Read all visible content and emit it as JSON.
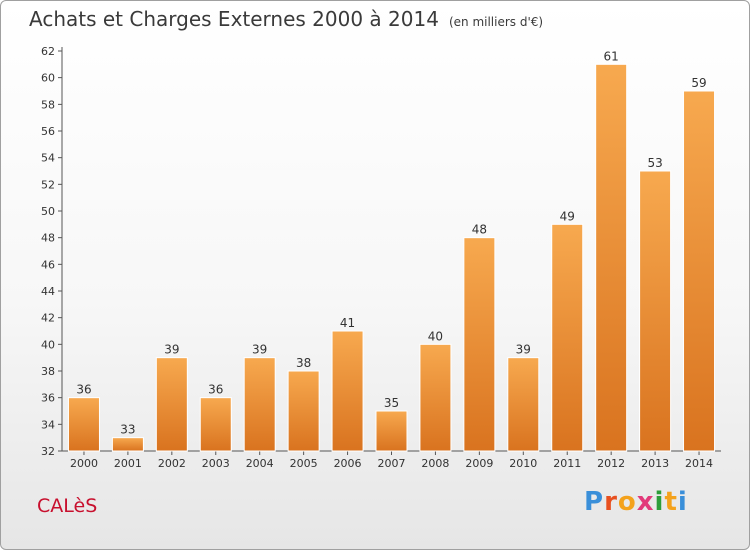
{
  "header": {
    "title": "Achats et Charges Externes 2000 à 2014",
    "unit": "(en milliers d'€)"
  },
  "footer": {
    "commune": "CALèS",
    "logo_text": "Proxiti"
  },
  "colors": {
    "bar_light": "#f7a94f",
    "bar_dark": "#d9731f",
    "axis": "#555555",
    "commune": "#c8102e"
  },
  "chart_data": {
    "type": "bar",
    "title": "Achats et Charges Externes 2000 à 2014",
    "subtitle": "(en milliers d'€)",
    "categories": [
      "2000",
      "2001",
      "2002",
      "2003",
      "2004",
      "2005",
      "2006",
      "2007",
      "2008",
      "2009",
      "2010",
      "2011",
      "2012",
      "2013",
      "2014"
    ],
    "values": [
      36,
      33,
      39,
      36,
      39,
      38,
      41,
      35,
      40,
      48,
      39,
      49,
      61,
      53,
      59
    ],
    "ylim": [
      32,
      62
    ],
    "yticks": [
      32,
      34,
      36,
      38,
      40,
      42,
      44,
      46,
      48,
      50,
      52,
      54,
      56,
      58,
      60,
      62
    ],
    "grid": false,
    "legend": "none"
  }
}
